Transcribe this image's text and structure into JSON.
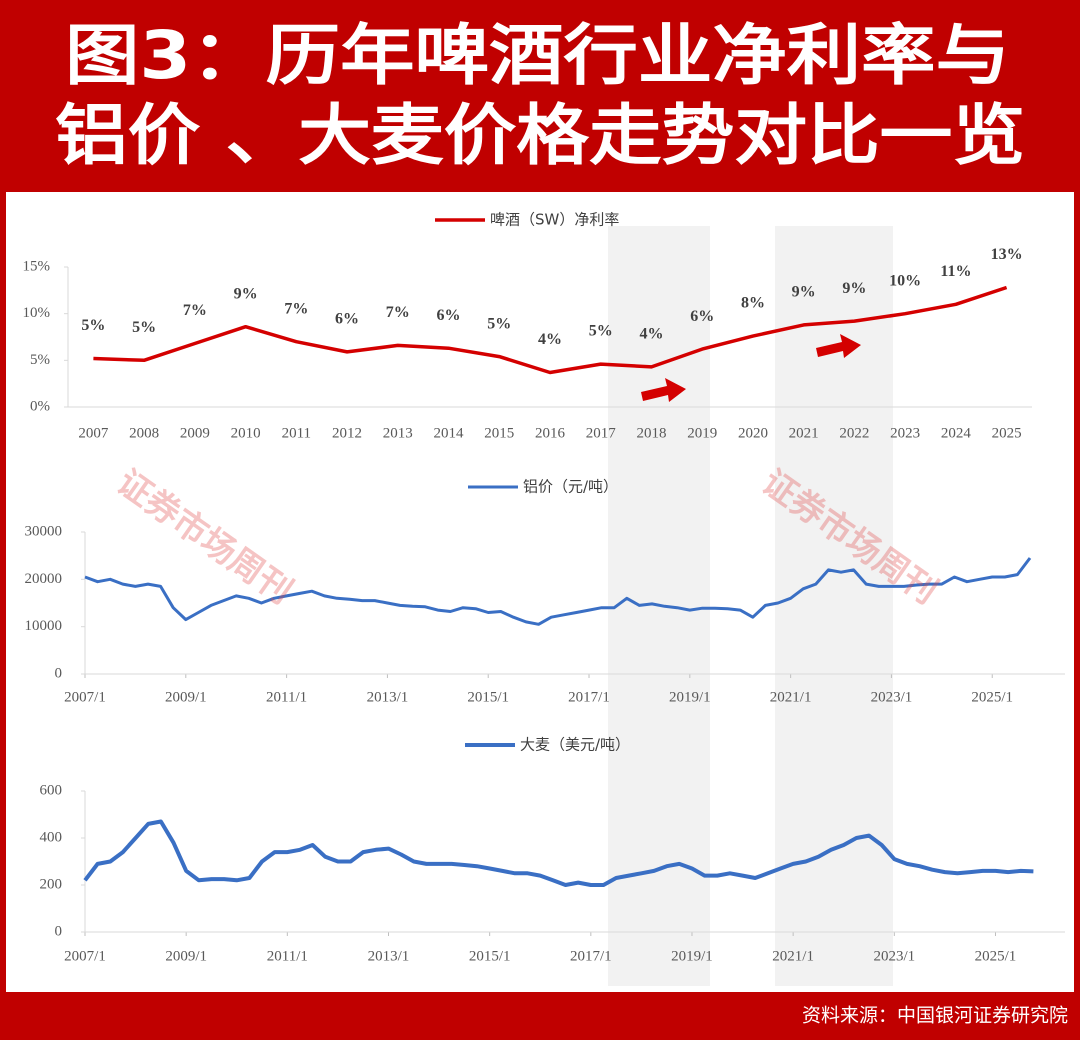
{
  "header": {
    "title_lines": [
      "图3：历年啤酒行业净利率与",
      "铝价 、大麦价格走势对比一览"
    ]
  },
  "footer": {
    "source": "资料来源：中国银河证券研究院"
  },
  "watermark": "证券市场周刊",
  "chart_data": [
    {
      "type": "line",
      "categories": [
        "2007",
        "2008",
        "2009",
        "2010",
        "2011",
        "2012",
        "2013",
        "2014",
        "2015",
        "2016",
        "2017",
        "2018",
        "2019",
        "2020",
        "2021",
        "2022",
        "2023",
        "2024",
        "2025"
      ],
      "series": [
        {
          "name": "啤酒（SW）净利率",
          "color": "#d40000",
          "values": [
            5.2,
            5.0,
            6.8,
            8.6,
            7.0,
            5.9,
            6.6,
            6.3,
            5.4,
            3.7,
            4.6,
            4.3,
            6.2,
            7.6,
            8.8,
            9.2,
            10.0,
            11.0,
            12.8
          ],
          "value_labels": [
            "5%",
            "5%",
            "7%",
            "9%",
            "7%",
            "6%",
            "7%",
            "6%",
            "5%",
            "4%",
            "5%",
            "4%",
            "6%",
            "8%",
            "9%",
            "9%",
            "10%",
            "11%",
            "13%"
          ]
        }
      ],
      "ylim": [
        0,
        15
      ],
      "yticks": [
        {
          "value": 0,
          "label": "0%"
        },
        {
          "value": 5,
          "label": "5%"
        },
        {
          "value": 10,
          "label": "10%"
        },
        {
          "value": 15,
          "label": "15%"
        }
      ]
    },
    {
      "type": "line",
      "x": [
        2007,
        2007.25,
        2007.5,
        2007.75,
        2008,
        2008.25,
        2008.5,
        2008.75,
        2009,
        2009.25,
        2009.5,
        2009.75,
        2010,
        2010.25,
        2010.5,
        2010.75,
        2011,
        2011.25,
        2011.5,
        2011.75,
        2012,
        2012.25,
        2012.5,
        2012.75,
        2013,
        2013.25,
        2013.5,
        2013.75,
        2014,
        2014.25,
        2014.5,
        2014.75,
        2015,
        2015.25,
        2015.5,
        2015.75,
        2016,
        2016.25,
        2016.5,
        2016.75,
        2017,
        2017.25,
        2017.5,
        2017.75,
        2018,
        2018.25,
        2018.5,
        2018.75,
        2019,
        2019.25,
        2019.5,
        2019.75,
        2020,
        2020.25,
        2020.5,
        2020.75,
        2021,
        2021.25,
        2021.5,
        2021.75,
        2022,
        2022.25,
        2022.5,
        2022.75,
        2023,
        2023.25,
        2023.5,
        2023.75,
        2024,
        2024.25,
        2024.5,
        2024.75,
        2025,
        2025.25,
        2025.5,
        2025.75
      ],
      "series": [
        {
          "name": "铝价（元/吨）",
          "color": "#3a6fc4",
          "values": [
            20500,
            19500,
            20000,
            19000,
            18500,
            19000,
            18500,
            14000,
            11500,
            13000,
            14500,
            15500,
            16500,
            16000,
            15000,
            16000,
            16500,
            17000,
            17500,
            16500,
            16000,
            15800,
            15500,
            15500,
            15000,
            14500,
            14300,
            14200,
            13500,
            13200,
            14000,
            13800,
            13000,
            13200,
            12000,
            11000,
            10500,
            12000,
            12500,
            13000,
            13500,
            14000,
            14000,
            16000,
            14500,
            14800,
            14300,
            14000,
            13500,
            13900,
            13900,
            13800,
            13500,
            12000,
            14500,
            15000,
            16000,
            18000,
            19000,
            22000,
            21500,
            22000,
            19000,
            18500,
            18500,
            18500,
            18800,
            19000,
            19000,
            20500,
            19500,
            20000,
            20500,
            20500,
            21000,
            24500
          ]
        }
      ],
      "xlim": [
        2007,
        2025.9
      ],
      "xticks": [
        {
          "value": 2007,
          "label": "2007/1"
        },
        {
          "value": 2009,
          "label": "2009/1"
        },
        {
          "value": 2011,
          "label": "2011/1"
        },
        {
          "value": 2013,
          "label": "2013/1"
        },
        {
          "value": 2015,
          "label": "2015/1"
        },
        {
          "value": 2017,
          "label": "2017/1"
        },
        {
          "value": 2019,
          "label": "2019/1"
        },
        {
          "value": 2021,
          "label": "2021/1"
        },
        {
          "value": 2023,
          "label": "2023/1"
        },
        {
          "value": 2025,
          "label": "2025/1"
        }
      ],
      "ylim": [
        0,
        30000
      ],
      "yticks": [
        0,
        10000,
        20000,
        30000
      ]
    },
    {
      "type": "line",
      "x": [
        2007,
        2007.25,
        2007.5,
        2007.75,
        2008,
        2008.25,
        2008.5,
        2008.75,
        2009,
        2009.25,
        2009.5,
        2009.75,
        2010,
        2010.25,
        2010.5,
        2010.75,
        2011,
        2011.25,
        2011.5,
        2011.75,
        2012,
        2012.25,
        2012.5,
        2012.75,
        2013,
        2013.25,
        2013.5,
        2013.75,
        2014,
        2014.25,
        2014.5,
        2014.75,
        2015,
        2015.25,
        2015.5,
        2015.75,
        2016,
        2016.25,
        2016.5,
        2016.75,
        2017,
        2017.25,
        2017.5,
        2017.75,
        2018,
        2018.25,
        2018.5,
        2018.75,
        2019,
        2019.25,
        2019.5,
        2019.75,
        2020,
        2020.25,
        2020.5,
        2020.75,
        2021,
        2021.25,
        2021.5,
        2021.75,
        2022,
        2022.25,
        2022.5,
        2022.75,
        2023,
        2023.25,
        2023.5,
        2023.75,
        2024,
        2024.25,
        2024.5,
        2024.75,
        2025,
        2025.25,
        2025.5,
        2025.75
      ],
      "series": [
        {
          "name": "大麦（美元/吨）",
          "color": "#3a6fc4",
          "values": [
            220,
            290,
            300,
            340,
            400,
            460,
            470,
            380,
            260,
            220,
            225,
            225,
            220,
            230,
            300,
            340,
            340,
            350,
            370,
            320,
            300,
            300,
            340,
            350,
            355,
            330,
            300,
            290,
            290,
            290,
            285,
            280,
            270,
            260,
            250,
            250,
            240,
            220,
            200,
            210,
            200,
            200,
            230,
            240,
            250,
            260,
            280,
            290,
            270,
            240,
            240,
            250,
            240,
            230,
            250,
            270,
            290,
            300,
            320,
            350,
            370,
            400,
            410,
            370,
            310,
            290,
            280,
            265,
            255,
            250,
            255,
            260,
            260,
            255,
            260,
            258
          ]
        }
      ],
      "xlim": [
        2007,
        2025.9
      ],
      "xticks": [
        {
          "value": 2007,
          "label": "2007/1"
        },
        {
          "value": 2009,
          "label": "2009/1"
        },
        {
          "value": 2011,
          "label": "2011/1"
        },
        {
          "value": 2013,
          "label": "2013/1"
        },
        {
          "value": 2015,
          "label": "2015/1"
        },
        {
          "value": 2017,
          "label": "2017/1"
        },
        {
          "value": 2019,
          "label": "2019/1"
        },
        {
          "value": 2021,
          "label": "2021/1"
        },
        {
          "value": 2023,
          "label": "2023/1"
        },
        {
          "value": 2025,
          "label": "2025/1"
        }
      ],
      "ylim": [
        0,
        600
      ],
      "yticks": [
        0,
        200,
        400,
        600
      ]
    }
  ]
}
